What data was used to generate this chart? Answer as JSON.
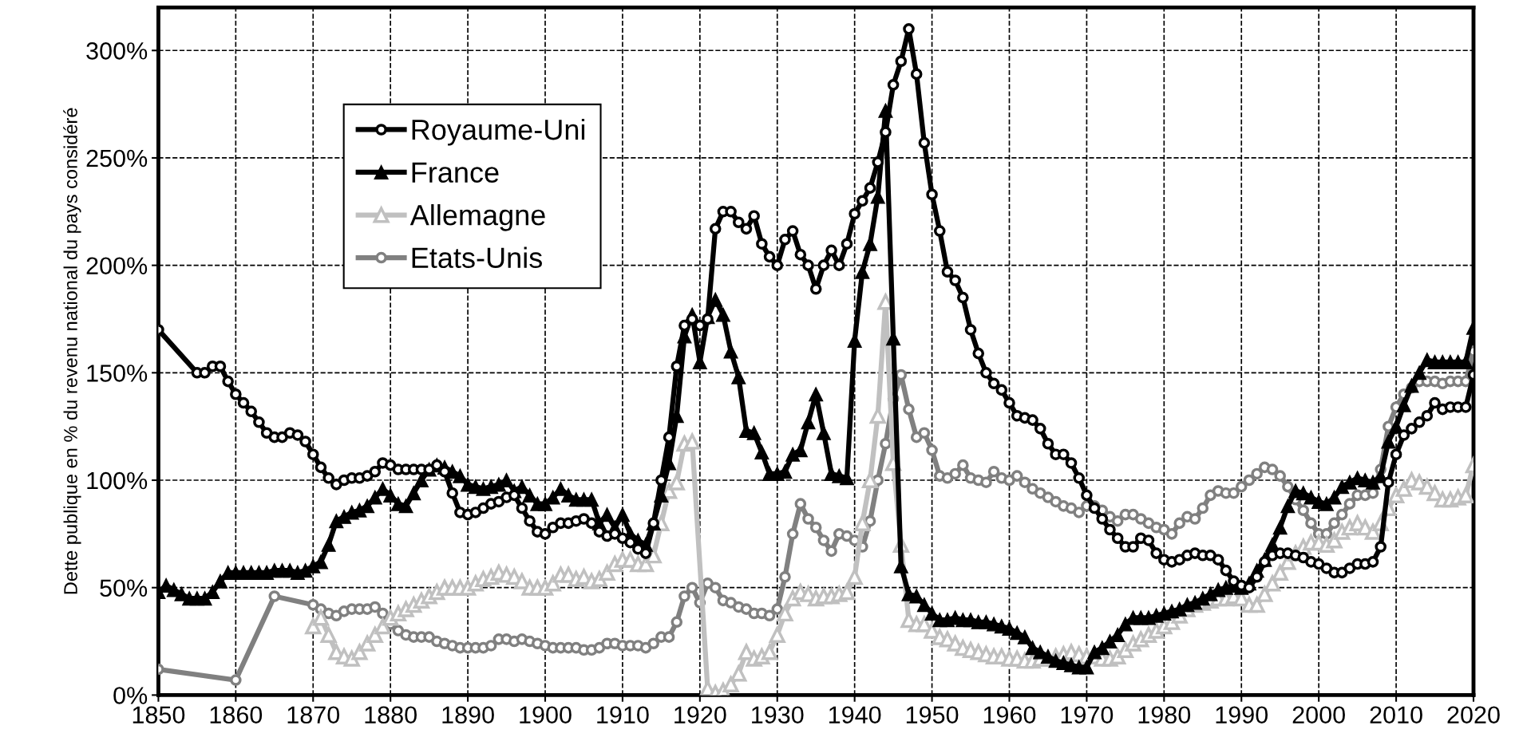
{
  "chart_data": {
    "type": "line",
    "ylabel": "Dette publique en % du revenu national du pays considéré",
    "xlim": [
      1850,
      2020
    ],
    "xticks": [
      1850,
      1860,
      1870,
      1880,
      1890,
      1900,
      1910,
      1920,
      1930,
      1940,
      1950,
      1960,
      1970,
      1980,
      1990,
      2000,
      2010,
      2020
    ],
    "ylim": [
      0,
      320
    ],
    "yticks": [
      {
        "value": 0,
        "label": "0%"
      },
      {
        "value": 50,
        "label": "50%"
      },
      {
        "value": 100,
        "label": "100%"
      },
      {
        "value": 150,
        "label": "150%"
      },
      {
        "value": 200,
        "label": "200%"
      },
      {
        "value": 250,
        "label": "250%"
      },
      {
        "value": 300,
        "label": "300%"
      }
    ],
    "grid": true,
    "legend": "top left",
    "line_style": "solid",
    "series": [
      {
        "name": "Royaume-Uni",
        "color": "#000000",
        "marker": "circle",
        "x": [
          1850,
          1855,
          1856,
          1857,
          1858,
          1859,
          1860,
          1861,
          1862,
          1863,
          1864,
          1865,
          1866,
          1867,
          1868,
          1869,
          1870,
          1871,
          1872,
          1873,
          1874,
          1875,
          1876,
          1877,
          1878,
          1879,
          1880,
          1881,
          1882,
          1883,
          1884,
          1885,
          1886,
          1887,
          1888,
          1889,
          1890,
          1891,
          1892,
          1893,
          1894,
          1895,
          1896,
          1897,
          1898,
          1899,
          1900,
          1901,
          1902,
          1903,
          1904,
          1905,
          1906,
          1907,
          1908,
          1909,
          1910,
          1911,
          1912,
          1913,
          1914,
          1915,
          1916,
          1917,
          1918,
          1919,
          1920,
          1921,
          1922,
          1923,
          1924,
          1925,
          1926,
          1927,
          1928,
          1929,
          1930,
          1931,
          1932,
          1933,
          1934,
          1935,
          1936,
          1937,
          1938,
          1939,
          1940,
          1941,
          1942,
          1943,
          1944,
          1945,
          1946,
          1947,
          1948,
          1949,
          1950,
          1951,
          1952,
          1953,
          1954,
          1955,
          1956,
          1957,
          1958,
          1959,
          1960,
          1961,
          1962,
          1963,
          1964,
          1965,
          1966,
          1967,
          1968,
          1969,
          1970,
          1971,
          1972,
          1973,
          1974,
          1975,
          1976,
          1977,
          1978,
          1979,
          1980,
          1981,
          1982,
          1983,
          1984,
          1985,
          1986,
          1987,
          1988,
          1989,
          1990,
          1991,
          1992,
          1993,
          1994,
          1995,
          1996,
          1997,
          1998,
          1999,
          2000,
          2001,
          2002,
          2003,
          2004,
          2005,
          2006,
          2007,
          2008,
          2009,
          2010,
          2011,
          2012,
          2013,
          2014,
          2015,
          2016,
          2017,
          2018,
          2019,
          2020
        ],
        "values": [
          170,
          150,
          150,
          153,
          153,
          146,
          140,
          136,
          132,
          127,
          122,
          120,
          120,
          122,
          121,
          118,
          112,
          106,
          101,
          98,
          100,
          101,
          101,
          102,
          104,
          108,
          107,
          105,
          105,
          105,
          105,
          105,
          107,
          104,
          94,
          85,
          84,
          85,
          87,
          89,
          90,
          92,
          93,
          87,
          81,
          76,
          75,
          78,
          80,
          80,
          81,
          82,
          80,
          76,
          74,
          75,
          73,
          71,
          68,
          66,
          80,
          100,
          120,
          153,
          172,
          175,
          172,
          175,
          217,
          225,
          225,
          220,
          217,
          223,
          210,
          204,
          200,
          212,
          216,
          205,
          200,
          189,
          200,
          207,
          200,
          210,
          224,
          230,
          236,
          248,
          262,
          284,
          295,
          310,
          289,
          257,
          233,
          216,
          197,
          193,
          185,
          170,
          159,
          150,
          145,
          142,
          136,
          130,
          129,
          128,
          124,
          117,
          112,
          112,
          108,
          101,
          93,
          87,
          82,
          77,
          73,
          69,
          69,
          73,
          72,
          66,
          63,
          62,
          63,
          65,
          66,
          65,
          65,
          63,
          58,
          53,
          51,
          50,
          55,
          62,
          65,
          66,
          66,
          65,
          64,
          62,
          61,
          59,
          57,
          57,
          59,
          61,
          61,
          62,
          69,
          99,
          112,
          121,
          124,
          127,
          130,
          136,
          133,
          134,
          134,
          134,
          149
        ]
      },
      {
        "name": "France",
        "color": "#000000",
        "marker": "triangle",
        "x": [
          1850,
          1851,
          1852,
          1853,
          1854,
          1855,
          1856,
          1857,
          1858,
          1859,
          1860,
          1861,
          1862,
          1863,
          1864,
          1865,
          1866,
          1867,
          1868,
          1869,
          1870,
          1871,
          1872,
          1873,
          1874,
          1875,
          1876,
          1877,
          1878,
          1879,
          1880,
          1881,
          1882,
          1883,
          1884,
          1885,
          1886,
          1887,
          1888,
          1889,
          1890,
          1891,
          1892,
          1893,
          1894,
          1895,
          1896,
          1897,
          1898,
          1899,
          1900,
          1901,
          1902,
          1903,
          1904,
          1905,
          1906,
          1907,
          1908,
          1909,
          1910,
          1911,
          1912,
          1913,
          1914,
          1915,
          1916,
          1917,
          1918,
          1919,
          1920,
          1921,
          1922,
          1923,
          1924,
          1925,
          1926,
          1927,
          1928,
          1929,
          1930,
          1931,
          1932,
          1933,
          1934,
          1935,
          1936,
          1937,
          1938,
          1939,
          1940,
          1941,
          1942,
          1943,
          1944,
          1945,
          1946,
          1947,
          1948,
          1949,
          1950,
          1951,
          1952,
          1953,
          1954,
          1955,
          1956,
          1957,
          1958,
          1959,
          1960,
          1961,
          1962,
          1963,
          1964,
          1965,
          1966,
          1967,
          1968,
          1969,
          1970,
          1971,
          1972,
          1973,
          1974,
          1975,
          1976,
          1977,
          1978,
          1979,
          1980,
          1981,
          1982,
          1983,
          1984,
          1985,
          1986,
          1987,
          1988,
          1989,
          1990,
          1991,
          1992,
          1993,
          1994,
          1995,
          1996,
          1997,
          1998,
          1999,
          2000,
          2001,
          2002,
          2003,
          2004,
          2005,
          2006,
          2007,
          2008,
          2009,
          2010,
          2011,
          2012,
          2013,
          2014,
          2015,
          2016,
          2017,
          2018,
          2019,
          2020
        ],
        "values": [
          48,
          51,
          49,
          47,
          45,
          45,
          45,
          48,
          53,
          57,
          57,
          57,
          57,
          57,
          57,
          58,
          58,
          58,
          57,
          58,
          60,
          62,
          70,
          81,
          83,
          85,
          86,
          88,
          92,
          96,
          93,
          89,
          88,
          94,
          100,
          105,
          107,
          106,
          104,
          102,
          98,
          97,
          96,
          97,
          98,
          100,
          95,
          97,
          93,
          89,
          89,
          92,
          96,
          93,
          91,
          91,
          91,
          80,
          84,
          78,
          84,
          75,
          72,
          70,
          80,
          93,
          108,
          130,
          167,
          177,
          155,
          176,
          184,
          177,
          160,
          148,
          123,
          122,
          113,
          103,
          103,
          104,
          112,
          114,
          127,
          140,
          122,
          103,
          102,
          101,
          165,
          197,
          210,
          232,
          272,
          166,
          60,
          47,
          46,
          42,
          38,
          35,
          35,
          36,
          35,
          35,
          34,
          34,
          33,
          32,
          31,
          29,
          27,
          22,
          20,
          18,
          16,
          15,
          14,
          13,
          13,
          20,
          22,
          25,
          28,
          33,
          36,
          36,
          36,
          37,
          38,
          39,
          40,
          42,
          43,
          45,
          47,
          49,
          50,
          51,
          50,
          52,
          58,
          63,
          70,
          78,
          88,
          95,
          94,
          92,
          90,
          89,
          92,
          97,
          99,
          101,
          100,
          99,
          102,
          118,
          125,
          135,
          144,
          150,
          156,
          155,
          155,
          155,
          155,
          155,
          171
        ]
      },
      {
        "name": "Allemagne",
        "color": "#c0c0c0",
        "marker": "triangle",
        "x": [
          1870,
          1871,
          1872,
          1873,
          1874,
          1875,
          1876,
          1877,
          1878,
          1879,
          1880,
          1881,
          1882,
          1883,
          1884,
          1885,
          1886,
          1887,
          1888,
          1889,
          1890,
          1891,
          1892,
          1893,
          1894,
          1895,
          1896,
          1897,
          1898,
          1899,
          1900,
          1901,
          1902,
          1903,
          1904,
          1905,
          1906,
          1907,
          1908,
          1909,
          1910,
          1911,
          1912,
          1913,
          1914,
          1915,
          1916,
          1917,
          1918,
          1919,
          1921,
          1922,
          1923,
          1924,
          1925,
          1926,
          1927,
          1928,
          1929,
          1930,
          1931,
          1932,
          1933,
          1934,
          1935,
          1936,
          1937,
          1938,
          1939,
          1940,
          1941,
          1942,
          1943,
          1944,
          1945,
          1946,
          1947,
          1948,
          1949,
          1950,
          1951,
          1952,
          1953,
          1954,
          1955,
          1956,
          1957,
          1958,
          1959,
          1960,
          1961,
          1962,
          1963,
          1964,
          1965,
          1966,
          1967,
          1968,
          1969,
          1970,
          1971,
          1972,
          1973,
          1974,
          1975,
          1976,
          1977,
          1978,
          1979,
          1980,
          1981,
          1982,
          1983,
          1984,
          1985,
          1986,
          1987,
          1988,
          1989,
          1990,
          1991,
          1992,
          1993,
          1994,
          1995,
          1996,
          1997,
          1998,
          1999,
          2000,
          2001,
          2002,
          2003,
          2004,
          2005,
          2006,
          2007,
          2008,
          2009,
          2010,
          2011,
          2012,
          2013,
          2014,
          2015,
          2016,
          2017,
          2018,
          2019,
          2020
        ],
        "values": [
          32,
          36,
          28,
          20,
          18,
          17,
          20,
          24,
          28,
          32,
          36,
          38,
          40,
          42,
          44,
          46,
          48,
          50,
          50,
          50,
          50,
          52,
          54,
          55,
          57,
          56,
          55,
          53,
          50,
          50,
          50,
          52,
          56,
          56,
          54,
          55,
          53,
          54,
          57,
          61,
          63,
          63,
          61,
          61,
          65,
          80,
          95,
          99,
          117,
          118,
          3,
          1,
          2,
          5,
          10,
          20,
          17,
          18,
          20,
          28,
          38,
          45,
          48,
          47,
          45,
          46,
          46,
          47,
          48,
          55,
          80,
          100,
          130,
          183,
          108,
          70,
          35,
          33,
          33,
          30,
          27,
          26,
          24,
          22,
          21,
          20,
          19,
          18,
          18,
          17,
          17,
          16,
          16,
          17,
          17,
          18,
          19,
          20,
          19,
          18,
          18,
          17,
          17,
          18,
          21,
          24,
          26,
          28,
          30,
          32,
          34,
          37,
          40,
          42,
          43,
          44,
          45,
          45,
          46,
          45,
          42,
          42,
          47,
          52,
          57,
          62,
          66,
          69,
          71,
          71,
          70,
          72,
          76,
          78,
          80,
          78,
          76,
          80,
          87,
          93,
          96,
          100,
          99,
          97,
          94,
          91,
          91,
          92,
          93,
          107
        ]
      },
      {
        "name": "Etats-Unis",
        "color": "#808080",
        "marker": "circle",
        "x": [
          1850,
          1860,
          1865,
          1870,
          1871,
          1872,
          1873,
          1874,
          1875,
          1876,
          1877,
          1878,
          1879,
          1880,
          1881,
          1882,
          1883,
          1884,
          1885,
          1886,
          1887,
          1888,
          1889,
          1890,
          1891,
          1892,
          1893,
          1894,
          1895,
          1896,
          1897,
          1898,
          1899,
          1900,
          1901,
          1902,
          1903,
          1904,
          1905,
          1906,
          1907,
          1908,
          1909,
          1910,
          1911,
          1912,
          1913,
          1914,
          1915,
          1916,
          1917,
          1918,
          1919,
          1920,
          1921,
          1922,
          1923,
          1924,
          1925,
          1926,
          1927,
          1928,
          1929,
          1930,
          1931,
          1932,
          1933,
          1934,
          1935,
          1936,
          1937,
          1938,
          1939,
          1940,
          1941,
          1942,
          1943,
          1944,
          1945,
          1946,
          1947,
          1948,
          1949,
          1950,
          1951,
          1952,
          1953,
          1954,
          1955,
          1956,
          1957,
          1958,
          1959,
          1960,
          1961,
          1962,
          1963,
          1964,
          1965,
          1966,
          1967,
          1968,
          1969,
          1970,
          1971,
          1972,
          1973,
          1974,
          1975,
          1976,
          1977,
          1978,
          1979,
          1980,
          1981,
          1982,
          1983,
          1984,
          1985,
          1986,
          1987,
          1988,
          1989,
          1990,
          1991,
          1992,
          1993,
          1994,
          1995,
          1996,
          1997,
          1998,
          1999,
          2000,
          2001,
          2002,
          2003,
          2004,
          2005,
          2006,
          2007,
          2008,
          2009,
          2010,
          2011,
          2012,
          2013,
          2014,
          2015,
          2016,
          2017,
          2018,
          2019,
          2020
        ],
        "values": [
          12,
          7,
          46,
          42,
          40,
          38,
          37,
          39,
          40,
          40,
          40,
          41,
          38,
          33,
          30,
          28,
          27,
          27,
          27,
          25,
          24,
          23,
          22,
          22,
          22,
          22,
          23,
          26,
          26,
          25,
          26,
          25,
          24,
          23,
          22,
          22,
          22,
          22,
          21,
          21,
          22,
          24,
          24,
          23,
          23,
          23,
          22,
          24,
          27,
          27,
          34,
          46,
          50,
          43,
          52,
          50,
          44,
          43,
          41,
          40,
          38,
          38,
          37,
          40,
          55,
          75,
          89,
          82,
          78,
          72,
          67,
          75,
          74,
          72,
          69,
          81,
          100,
          117,
          138,
          149,
          133,
          120,
          122,
          114,
          102,
          101,
          103,
          107,
          101,
          100,
          99,
          104,
          101,
          100,
          102,
          99,
          96,
          94,
          92,
          90,
          88,
          87,
          85,
          88,
          88,
          86,
          83,
          81,
          84,
          84,
          82,
          80,
          78,
          77,
          75,
          80,
          83,
          82,
          87,
          93,
          95,
          94,
          94,
          97,
          100,
          103,
          106,
          105,
          102,
          97,
          91,
          86,
          80,
          75,
          75,
          80,
          84,
          89,
          93,
          93,
          94,
          105,
          125,
          134,
          140,
          143,
          146,
          146,
          146,
          145,
          146,
          146,
          146,
          160
        ]
      }
    ]
  }
}
